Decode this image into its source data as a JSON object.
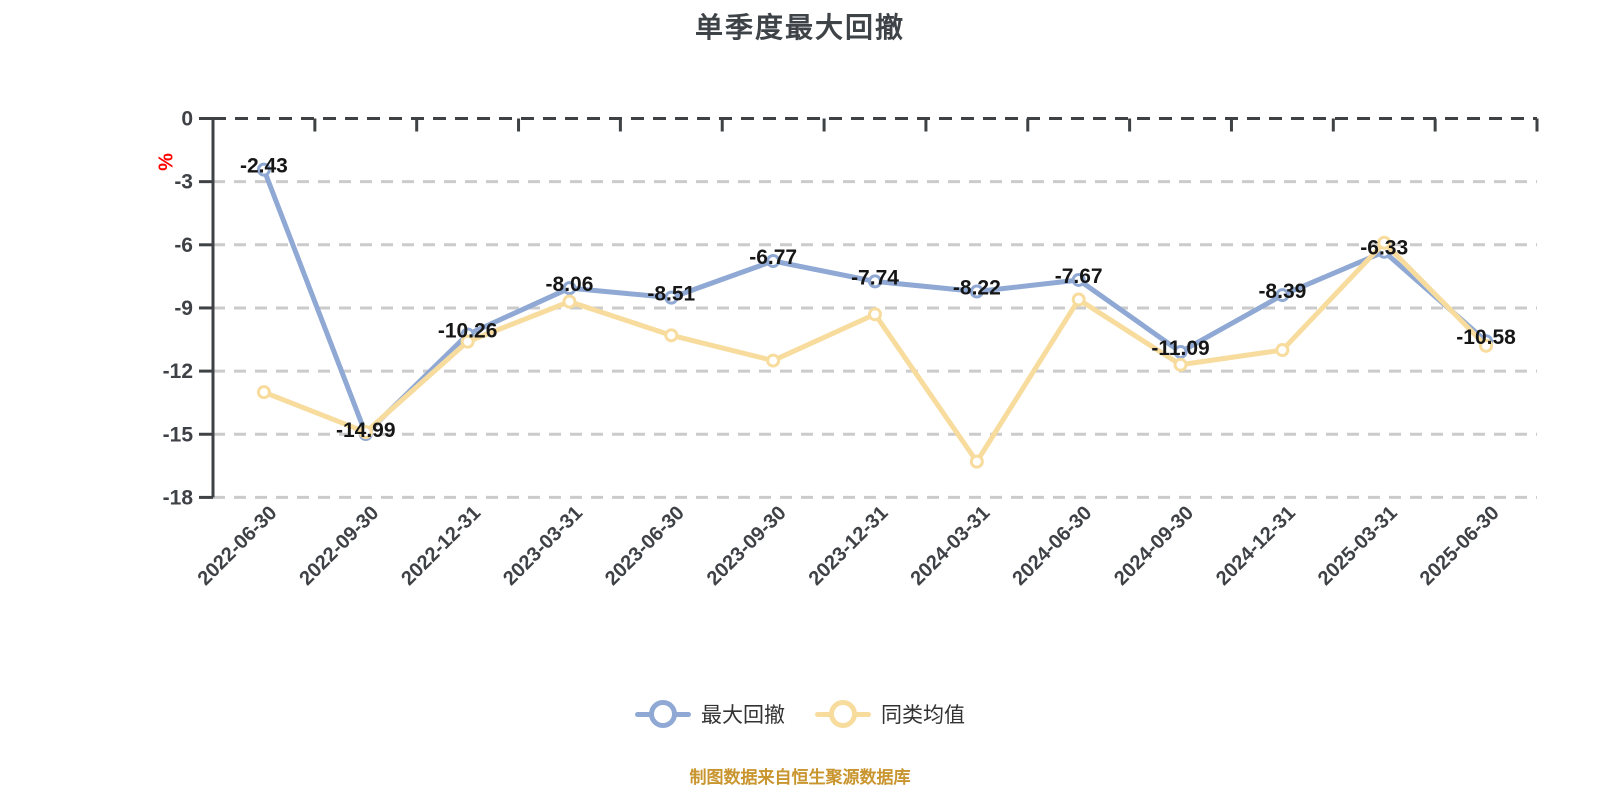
{
  "colors": {
    "background": "#ffffff",
    "title_text": "#3e4348",
    "axis_line": "#3f4245",
    "grid_line": "#cbcbcb",
    "tick_label": "#3e4145",
    "value_label": "#161616",
    "series_max_drawdown": "#8fa9d4",
    "series_peer_average": "#f7dc9e",
    "marker_fill": "#ffffff",
    "legend_text": "#333333",
    "footer_text": "#c9952f",
    "y_unit_text": "#ff0000"
  },
  "chart_data": {
    "type": "line",
    "title": "单季度最大回撤",
    "y_unit": "%",
    "categories": [
      "2022-06-30",
      "2022-09-30",
      "2022-12-31",
      "2023-03-31",
      "2023-06-30",
      "2023-09-30",
      "2023-12-31",
      "2024-03-31",
      "2024-06-30",
      "2024-09-30",
      "2024-12-31",
      "2025-03-31",
      "2025-06-30"
    ],
    "series": [
      {
        "name": "最大回撤",
        "color": "#8fa9d4",
        "marker_fill": "#ffffff",
        "data_labels": true,
        "values": [
          -2.43,
          -14.99,
          -10.26,
          -8.06,
          -8.51,
          -6.77,
          -7.74,
          -8.22,
          -7.67,
          -11.09,
          -8.39,
          -6.33,
          -10.58
        ]
      },
      {
        "name": "同类均值",
        "color": "#f7dc9e",
        "marker_fill": "#ffffff",
        "data_labels": false,
        "values": [
          -13.0,
          -14.9,
          -10.6,
          -8.7,
          -10.3,
          -11.5,
          -9.3,
          -16.3,
          -8.6,
          -11.7,
          -11.0,
          -5.9,
          -10.8
        ]
      }
    ],
    "ylim": [
      -18,
      0
    ],
    "ytick_step": 3,
    "ytick_labels": [
      "0",
      "-3",
      "-6",
      "-9",
      "-12",
      "-15",
      "-18"
    ],
    "grid": "horizontal dashed",
    "legend": [
      "最大回撤",
      "同类均值"
    ],
    "legend_position": "bottom",
    "footer": "制图数据来自恒生聚源数据库"
  }
}
